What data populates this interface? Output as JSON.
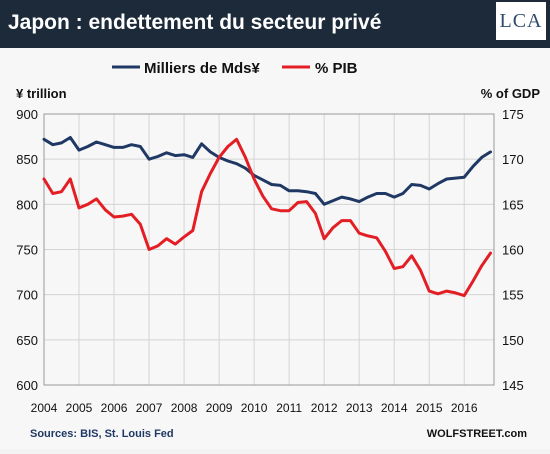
{
  "header": {
    "title": "Japon : endettement du secteur privé",
    "logo_text": "LCA"
  },
  "chart_data": {
    "type": "line",
    "title": "",
    "ylabel_left": "¥ trillion",
    "ylabel_right": "% of GDP",
    "ylim_left": [
      600,
      900
    ],
    "ylim_right": [
      145,
      175
    ],
    "yticks_left": [
      600,
      650,
      700,
      750,
      800,
      850,
      900
    ],
    "yticks_right": [
      145,
      150,
      155,
      160,
      165,
      170,
      175
    ],
    "yticklabels_right": [
      "145",
      "150",
      "155",
      "160",
      "165",
      "170",
      "175"
    ],
    "xticks": [
      "2004",
      "2005",
      "2006",
      "2007",
      "2008",
      "2009",
      "2010",
      "2011",
      "2012",
      "2013",
      "2014",
      "2015",
      "2016"
    ],
    "xlim": [
      2004,
      2016.85
    ],
    "grid": true,
    "legend": "top",
    "colors": {
      "navy": "#1f3864",
      "red": "#e31e24"
    },
    "series": [
      {
        "name": "Milliers de Mds¥",
        "axis": "left",
        "color": "#1f3864",
        "x": [
          2004.0,
          2004.25,
          2004.5,
          2004.75,
          2005.0,
          2005.25,
          2005.5,
          2005.75,
          2006.0,
          2006.25,
          2006.5,
          2006.75,
          2007.0,
          2007.25,
          2007.5,
          2007.75,
          2008.0,
          2008.25,
          2008.5,
          2008.75,
          2009.0,
          2009.25,
          2009.5,
          2009.75,
          2010.0,
          2010.25,
          2010.5,
          2010.75,
          2011.0,
          2011.25,
          2011.5,
          2011.75,
          2012.0,
          2012.25,
          2012.5,
          2012.75,
          2013.0,
          2013.25,
          2013.5,
          2013.75,
          2014.0,
          2014.25,
          2014.5,
          2014.75,
          2015.0,
          2015.25,
          2015.5,
          2015.75,
          2016.0,
          2016.25,
          2016.5,
          2016.75
        ],
        "values": [
          872,
          866,
          868,
          874,
          860,
          864,
          869,
          866,
          863,
          863,
          866,
          864,
          850,
          853,
          857,
          854,
          855,
          852,
          867,
          858,
          852,
          848,
          845,
          840,
          832,
          827,
          822,
          821,
          815,
          815,
          814,
          812,
          800,
          804,
          808,
          806,
          803,
          808,
          812,
          812,
          808,
          812,
          822,
          821,
          817,
          823,
          828,
          829,
          830,
          842,
          852,
          858
        ]
      },
      {
        "name": "% PIB",
        "axis": "right",
        "color": "#e31e24",
        "x": [
          2004.0,
          2004.25,
          2004.5,
          2004.75,
          2005.0,
          2005.25,
          2005.5,
          2005.75,
          2006.0,
          2006.25,
          2006.5,
          2006.75,
          2007.0,
          2007.25,
          2007.5,
          2007.75,
          2008.0,
          2008.25,
          2008.5,
          2008.75,
          2009.0,
          2009.25,
          2009.5,
          2009.75,
          2010.0,
          2010.25,
          2010.5,
          2010.75,
          2011.0,
          2011.25,
          2011.5,
          2011.75,
          2012.0,
          2012.25,
          2012.5,
          2012.75,
          2013.0,
          2013.25,
          2013.5,
          2013.75,
          2014.0,
          2014.25,
          2014.5,
          2014.75,
          2015.0,
          2015.25,
          2015.5,
          2015.75,
          2016.0,
          2016.25,
          2016.5,
          2016.75
        ],
        "values": [
          167.8,
          166.2,
          166.4,
          167.8,
          164.6,
          165.0,
          165.6,
          164.4,
          163.6,
          163.7,
          163.9,
          162.8,
          160.0,
          160.4,
          161.2,
          160.6,
          161.4,
          162.1,
          166.4,
          168.4,
          170.2,
          171.4,
          172.2,
          170.2,
          167.8,
          165.9,
          164.5,
          164.3,
          164.3,
          165.2,
          165.3,
          164.0,
          161.2,
          162.4,
          163.2,
          163.2,
          161.8,
          161.5,
          161.3,
          159.8,
          157.9,
          158.1,
          159.3,
          157.7,
          155.4,
          155.1,
          155.4,
          155.2,
          154.9,
          156.5,
          158.2,
          159.6
        ]
      }
    ],
    "source": "Sources: BIS, St. Louis Fed",
    "watermark": "WOLFSTREET.com"
  }
}
